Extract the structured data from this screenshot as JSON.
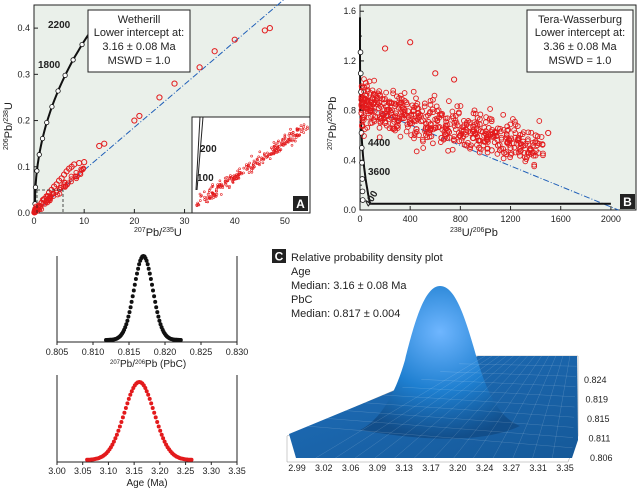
{
  "panels": {
    "a": {
      "letter": "A",
      "legend": [
        "Wetherill",
        "Lower intercept at:",
        "3.16 ± 0.08 Ma",
        "MSWD = 1.0"
      ],
      "xlabel_main": "Pb/ U",
      "xlabel_sup1": "207",
      "xlabel_sup2": "235",
      "ylabel_main": "Pb/ U",
      "ylabel_sup1": "206",
      "ylabel_sup2": "238",
      "concordia_labels": [
        "2200",
        "1800"
      ],
      "inset_labels": [
        "200",
        "100"
      ],
      "xticks": [
        "0",
        "10",
        "20",
        "30",
        "40",
        "50"
      ],
      "yticks": [
        "0.0",
        "0.1",
        "0.2",
        "0.3",
        "0.4"
      ]
    },
    "b": {
      "letter": "B",
      "legend": [
        "Tera-Wasserburg",
        "Lower intercept at:",
        "3.36 ± 0.08 Ma",
        "MSWD = 1.0"
      ],
      "xlabel_main": "U/ Pb",
      "xlabel_sup1": "238",
      "xlabel_sup2": "206",
      "ylabel_main": "Pb/ Pb",
      "ylabel_sup1": "207",
      "ylabel_sup2": "206",
      "concordia_labels": [
        "4400",
        "3600",
        "400"
      ],
      "xticks": [
        "0",
        "400",
        "800",
        "1200",
        "1600",
        "2000"
      ],
      "yticks": [
        "0.0",
        "0.4",
        "0.8",
        "1.2",
        "1.6"
      ],
      "yticks_minor": [
        "0.2",
        "0.6",
        "1.0",
        "1.4"
      ]
    },
    "c": {
      "letter": "C",
      "text": [
        "Relative probability density plot",
        "Age",
        "Median: 3.16 ± 0.08 Ma",
        "PbC",
        "Median: 0.817 ± 0.004"
      ],
      "x_ticks": [
        "2.99",
        "3.02",
        "3.06",
        "3.09",
        "3.13",
        "3.17",
        "3.20",
        "3.24",
        "3.27",
        "3.31",
        "3.35"
      ],
      "y_ticks": [
        "0.824",
        "0.819",
        "0.815",
        "0.811",
        "0.806"
      ]
    },
    "pbc": {
      "xlabel_main": "Pb/ Pb (PbC)",
      "xlabel_sup1": "207",
      "xlabel_sup2": "206",
      "xticks": [
        "0.805",
        "0.810",
        "0.815",
        "0.820",
        "0.825",
        "0.830"
      ]
    },
    "age": {
      "xlabel": "Age (Ma)",
      "xticks": [
        "3.00",
        "3.05",
        "3.10",
        "3.15",
        "3.20",
        "3.25",
        "3.30",
        "3.35"
      ]
    }
  },
  "colors": {
    "red": "#e31a1c",
    "black": "#111111",
    "blue": "#1f5fb8",
    "surface": "#1e7fd0",
    "plot_bg": "#eaf0ea"
  },
  "chart_data": [
    {
      "type": "scatter",
      "panel": "A",
      "title": "Wetherill",
      "xlabel": "207Pb/235U",
      "ylabel": "206Pb/238U",
      "xlim": [
        0,
        55
      ],
      "ylim": [
        0,
        0.45
      ],
      "series": [
        {
          "name": "",
          "points": [
            [
              0.3,
              0.006
            ],
            [
              0.6,
              0.01
            ],
            [
              1,
              0.016
            ],
            [
              1.5,
              0.022
            ],
            [
              2,
              0.03
            ],
            [
              2.5,
              0.036
            ],
            [
              3,
              0.044
            ],
            [
              3.5,
              0.05
            ],
            [
              4,
              0.057
            ],
            [
              4.5,
              0.062
            ],
            [
              5,
              0.07
            ],
            [
              5.5,
              0.075
            ],
            [
              6,
              0.083
            ],
            [
              6.5,
              0.09
            ],
            [
              7,
              0.096
            ],
            [
              7.5,
              0.1
            ],
            [
              8,
              0.105
            ],
            [
              9,
              0.108
            ],
            [
              10,
              0.11
            ],
            [
              13,
              0.145
            ],
            [
              14,
              0.15
            ],
            [
              20,
              0.2
            ],
            [
              21,
              0.21
            ],
            [
              25,
              0.25
            ],
            [
              28,
              0.28
            ],
            [
              33,
              0.315
            ],
            [
              36,
              0.35
            ],
            [
              40,
              0.375
            ],
            [
              46,
              0.395
            ],
            [
              47,
              0.4
            ]
          ]
        }
      ],
      "lines": [
        "discordia (lower intercept 3.16 ± 0.08 Ma)",
        "concordia"
      ],
      "grid": false
    },
    {
      "type": "scatter",
      "panel": "B",
      "title": "Tera-Wasserburg",
      "xlabel": "238U/206Pb",
      "ylabel": "207Pb/206Pb",
      "xlim": [
        0,
        2200
      ],
      "ylim": [
        0,
        1.6
      ],
      "series": [
        {
          "name": "",
          "points": [
            [
              30,
              0.9
            ],
            [
              60,
              0.85
            ],
            [
              100,
              0.8
            ],
            [
              120,
              0.75
            ],
            [
              150,
              0.82
            ],
            [
              200,
              0.7
            ],
            [
              250,
              0.78
            ],
            [
              300,
              0.68
            ],
            [
              350,
              0.74
            ],
            [
              400,
              0.7
            ],
            [
              450,
              0.65
            ],
            [
              500,
              0.72
            ],
            [
              550,
              0.62
            ],
            [
              600,
              0.66
            ],
            [
              650,
              0.58
            ],
            [
              700,
              0.64
            ],
            [
              750,
              0.56
            ],
            [
              800,
              0.6
            ],
            [
              850,
              0.52
            ],
            [
              900,
              0.58
            ],
            [
              950,
              0.5
            ],
            [
              1000,
              0.55
            ],
            [
              1050,
              0.48
            ],
            [
              1100,
              0.52
            ],
            [
              1150,
              0.46
            ],
            [
              1200,
              0.5
            ],
            [
              1300,
              0.55
            ],
            [
              1400,
              0.6
            ],
            [
              1500,
              0.62
            ],
            [
              400,
              1.35
            ],
            [
              200,
              1.3
            ],
            [
              600,
              1.1
            ],
            [
              750,
              1.05
            ]
          ]
        }
      ],
      "lines": [
        "discordia (lower intercept 3.36 ± 0.08 Ma)",
        "concordia"
      ],
      "grid": false
    },
    {
      "type": "scatter",
      "panel": "PbC",
      "xlabel": "207Pb/206Pb (PbC)",
      "xlim": [
        0.805,
        0.83
      ],
      "distribution": {
        "median": 0.817,
        "sigma": 0.0013
      }
    },
    {
      "type": "scatter",
      "panel": "Age",
      "xlabel": "Age (Ma)",
      "xlim": [
        3.0,
        3.35
      ],
      "distribution": {
        "median": 3.16,
        "sigma": 0.029
      }
    },
    {
      "type": "area",
      "panel": "C",
      "title": "Relative probability density plot",
      "x_axis": "Age",
      "x_range": [
        2.99,
        3.35
      ],
      "y_axis": "PbC",
      "y_range": [
        0.806,
        0.824
      ],
      "peak": {
        "age": 3.16,
        "pbc": 0.817
      }
    }
  ]
}
